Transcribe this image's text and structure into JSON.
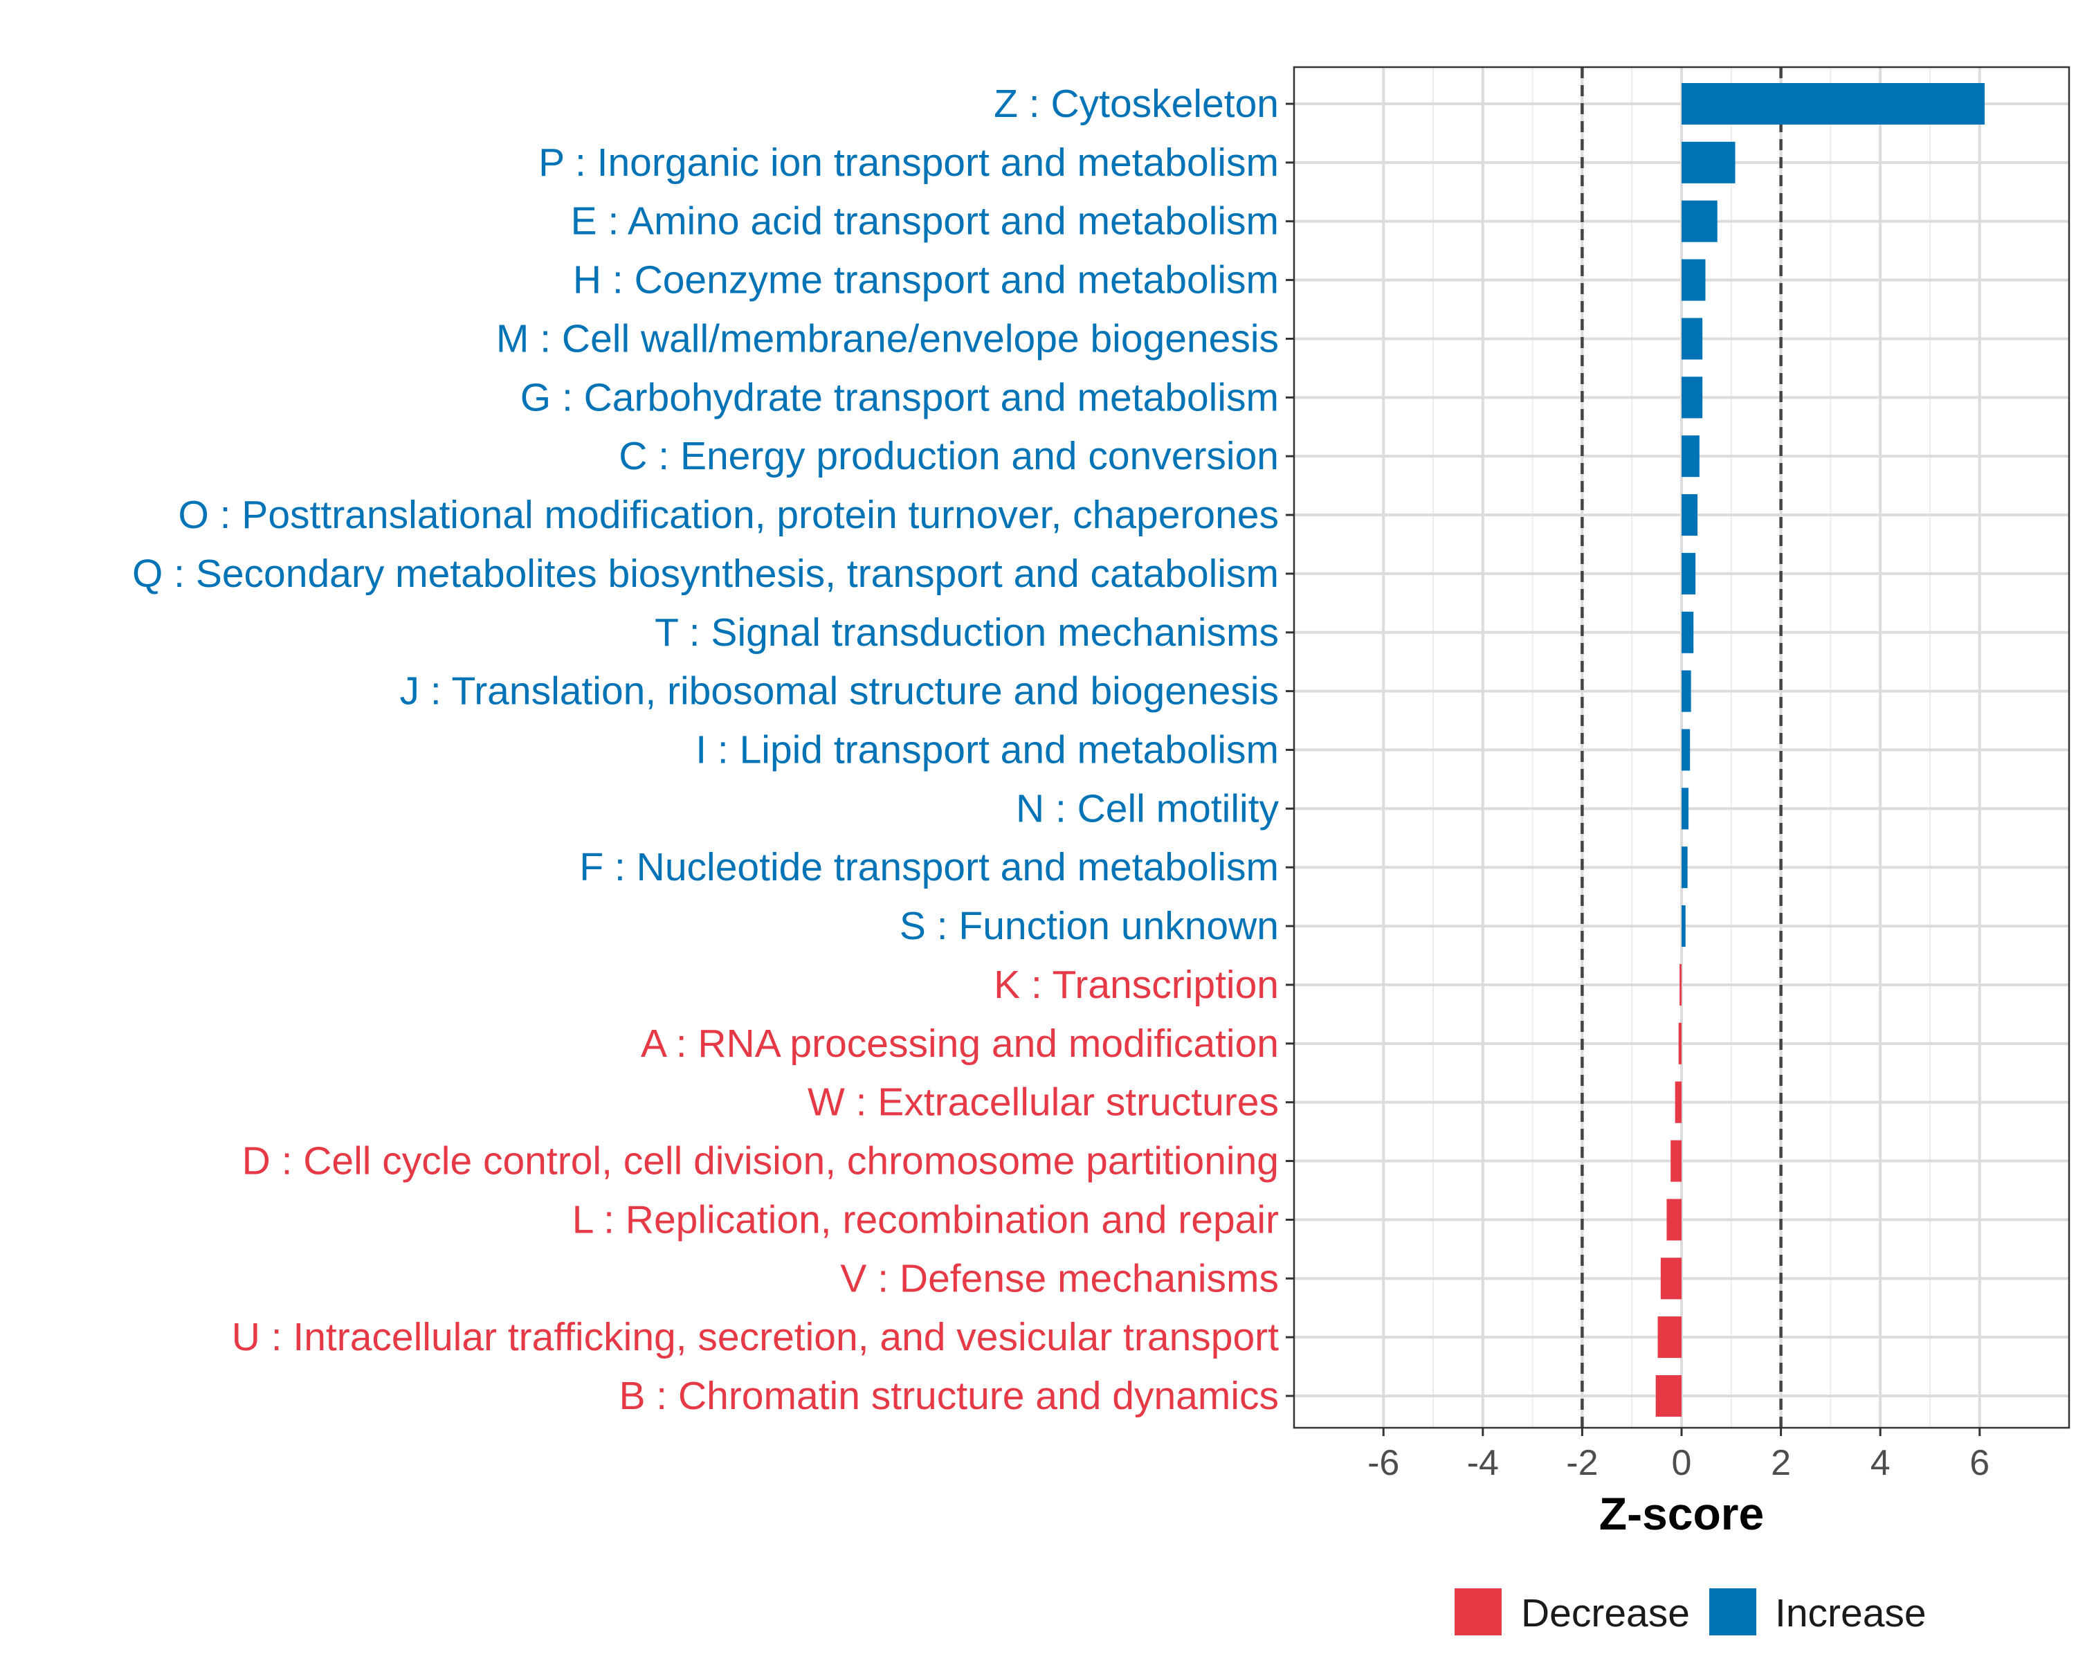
{
  "chart_data": {
    "type": "bar",
    "orientation": "horizontal",
    "title": "",
    "xlabel": "Z-score",
    "ylabel": "",
    "xlim": [
      -7.8,
      7.8
    ],
    "xticks": [
      -6,
      -4,
      -2,
      0,
      2,
      4,
      6
    ],
    "xtick_labels": [
      "-6",
      "-4",
      "-2",
      "0",
      "2",
      "4",
      "6"
    ],
    "reference_lines": [
      -2,
      2
    ],
    "grid": true,
    "legend_position": "bottom",
    "categories": [
      "Z : Cytoskeleton",
      "P : Inorganic ion transport and metabolism",
      "E : Amino acid transport and metabolism",
      "H : Coenzyme transport and metabolism",
      "M : Cell wall/membrane/envelope biogenesis",
      "G : Carbohydrate transport and metabolism",
      "C : Energy production and conversion",
      "O : Posttranslational modification, protein turnover, chaperones",
      "Q : Secondary metabolites biosynthesis, transport and catabolism",
      "T : Signal transduction mechanisms",
      "J : Translation, ribosomal structure and biogenesis",
      "I : Lipid transport and metabolism",
      "N : Cell motility",
      "F : Nucleotide transport and metabolism",
      "S : Function unknown",
      "K : Transcription",
      "A : RNA processing and modification",
      "W : Extracellular structures",
      "D : Cell cycle control, cell division, chromosome partitioning",
      "L : Replication, recombination and repair",
      "V : Defense mechanisms",
      "U : Intracellular trafficking, secretion, and vesicular transport",
      "B : Chromatin structure and dynamics"
    ],
    "values": [
      6.1,
      1.08,
      0.72,
      0.48,
      0.42,
      0.42,
      0.36,
      0.32,
      0.28,
      0.24,
      0.19,
      0.17,
      0.14,
      0.12,
      0.08,
      -0.04,
      -0.06,
      -0.13,
      -0.22,
      -0.3,
      -0.42,
      -0.48,
      -0.52
    ],
    "groups": [
      "Increase",
      "Increase",
      "Increase",
      "Increase",
      "Increase",
      "Increase",
      "Increase",
      "Increase",
      "Increase",
      "Increase",
      "Increase",
      "Increase",
      "Increase",
      "Increase",
      "Increase",
      "Decrease",
      "Decrease",
      "Decrease",
      "Decrease",
      "Decrease",
      "Decrease",
      "Decrease",
      "Decrease"
    ],
    "legend": [
      {
        "label": "Decrease",
        "color": "#E63946"
      },
      {
        "label": "Increase",
        "color": "#0073B7"
      }
    ]
  }
}
